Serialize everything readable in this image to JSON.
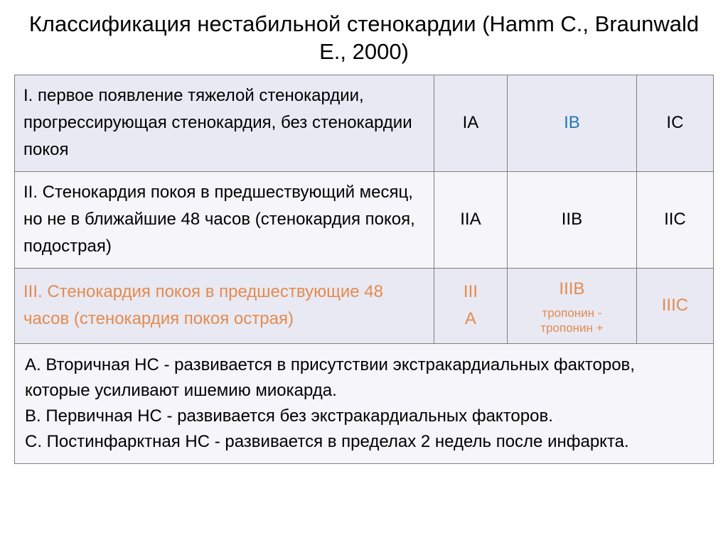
{
  "title": "Классификация нестабильной стенокардии (Hamm C., Braunwald E., 2000)",
  "rows": [
    {
      "desc": "I. первое появление тяжелой стенокардии, прогрессирующая стенокардия, без стенокардии покоя",
      "a": "IA",
      "b": "IB",
      "c": "IC",
      "bg": "#e9e9f3",
      "color": "#000000",
      "b_color": "#1f77b4",
      "sub_b": ""
    },
    {
      "desc": "II. Стенокардия покоя в предшествующий месяц, но не в ближайшие 48 часов (стенокардия покоя, подострая)",
      "a": "IIA",
      "b": "IIB",
      "c": "IIC",
      "bg": "#f5f5fa",
      "color": "#000000",
      "b_color": "#000000",
      "sub_b": ""
    },
    {
      "desc": "III. Стенокардия покоя в предшествующие 48 часов (стенокардия покоя острая)",
      "a": "III\nA",
      "b": "IIIB",
      "c": "IIIC",
      "bg": "#e9e9f3",
      "color": "#e38b4f",
      "b_color": "#e38b4f",
      "sub_b": "тропонин -\nтропонин +"
    }
  ],
  "footer": "A. Вторичная НС - развивается в присутствии экстракардиальных факторов, которые усиливают ишемию миокарда.\nB. Первичная НС - развивается без экстракардиальных факторов.\nC. Постинфарктная НС - развивается в пределах 2 недель после инфаркта.",
  "footer_bg": "#f5f5fa"
}
